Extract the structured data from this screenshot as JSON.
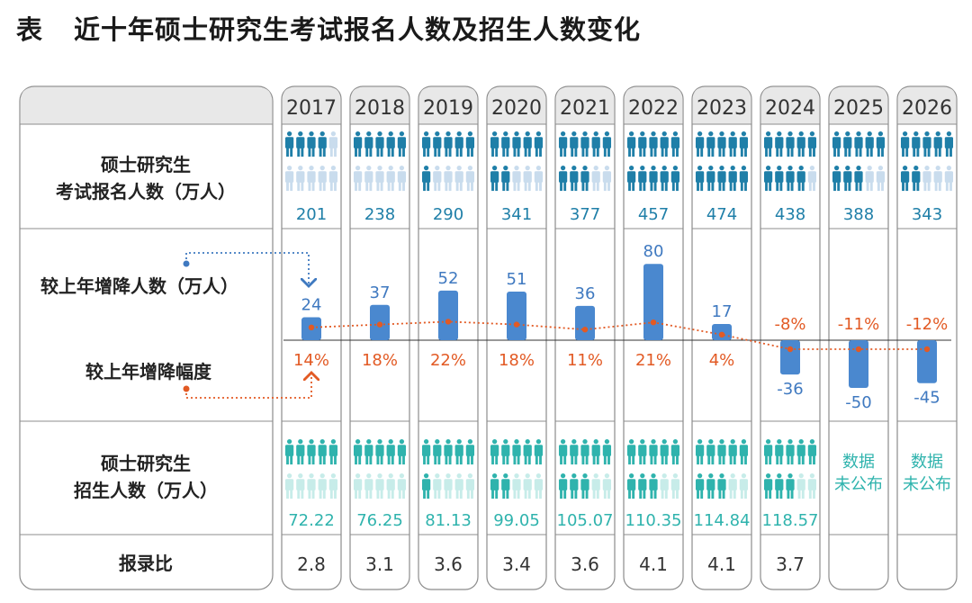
{
  "title": {
    "tag": "表",
    "text": "近十年硕士研究生考试报名人数及招生人数变化"
  },
  "row_labels": {
    "applicants": [
      "硕士研究生",
      "考试报名人数（万人）"
    ],
    "change": "较上年增降人数（万人）",
    "rate": "较上年增降幅度",
    "enrollment": [
      "硕士研究生",
      "招生人数（万人）"
    ],
    "ratio": "报录比"
  },
  "colors": {
    "applicant_icon": "#1f7fa8",
    "applicant_icon_light": "#c9dced",
    "applicant_text": "#1f7fa8",
    "bar": "#4a88cf",
    "change_text": "#3f79c0",
    "rate_text": "#e25a24",
    "enroll_icon": "#2fb3ad",
    "enroll_icon_light": "#c7ece9",
    "enroll_text": "#2fb3ad",
    "not_published_text": "#2fb3ad",
    "header_bg": "#e8e8e8",
    "border": "#8c8c8c",
    "ratio_text": "#333333"
  },
  "not_published": [
    "数据",
    "未公布"
  ],
  "chart_data": {
    "type": "table",
    "title": "近十年硕士研究生考试报名人数及招生人数变化",
    "years": [
      "2017",
      "2018",
      "2019",
      "2020",
      "2021",
      "2022",
      "2023",
      "2024",
      "2025",
      "2026"
    ],
    "applicants": [
      201,
      238,
      290,
      341,
      377,
      457,
      474,
      438,
      388,
      343
    ],
    "applicants_labels": [
      "201",
      "238",
      "290",
      "341",
      "377",
      "457",
      "474",
      "438",
      "388",
      "343"
    ],
    "change": [
      24,
      37,
      52,
      51,
      36,
      80,
      17,
      -36,
      -50,
      -45
    ],
    "change_labels": [
      "24",
      "37",
      "52",
      "51",
      "36",
      "80",
      "17",
      "-36",
      "-50",
      "-45"
    ],
    "rate": [
      14,
      18,
      22,
      18,
      11,
      21,
      4,
      -8,
      -11,
      -12
    ],
    "rate_labels": [
      "14%",
      "18%",
      "22%",
      "18%",
      "11%",
      "21%",
      "4%",
      "-8%",
      "-11%",
      "-12%"
    ],
    "enrollment": [
      72.22,
      76.25,
      81.13,
      99.05,
      105.07,
      110.35,
      114.84,
      118.57,
      null,
      null
    ],
    "enrollment_labels": [
      "72.22",
      "76.25",
      "81.13",
      "99.05",
      "105.07",
      "110.35",
      "114.84",
      "118.57",
      "",
      ""
    ],
    "ratio_labels": [
      "2.8",
      "3.1",
      "3.6",
      "3.4",
      "3.6",
      "4.1",
      "4.1",
      "3.7",
      "",
      ""
    ],
    "applicants_icon_scale": 48,
    "enrollment_icon_scale": 14
  }
}
